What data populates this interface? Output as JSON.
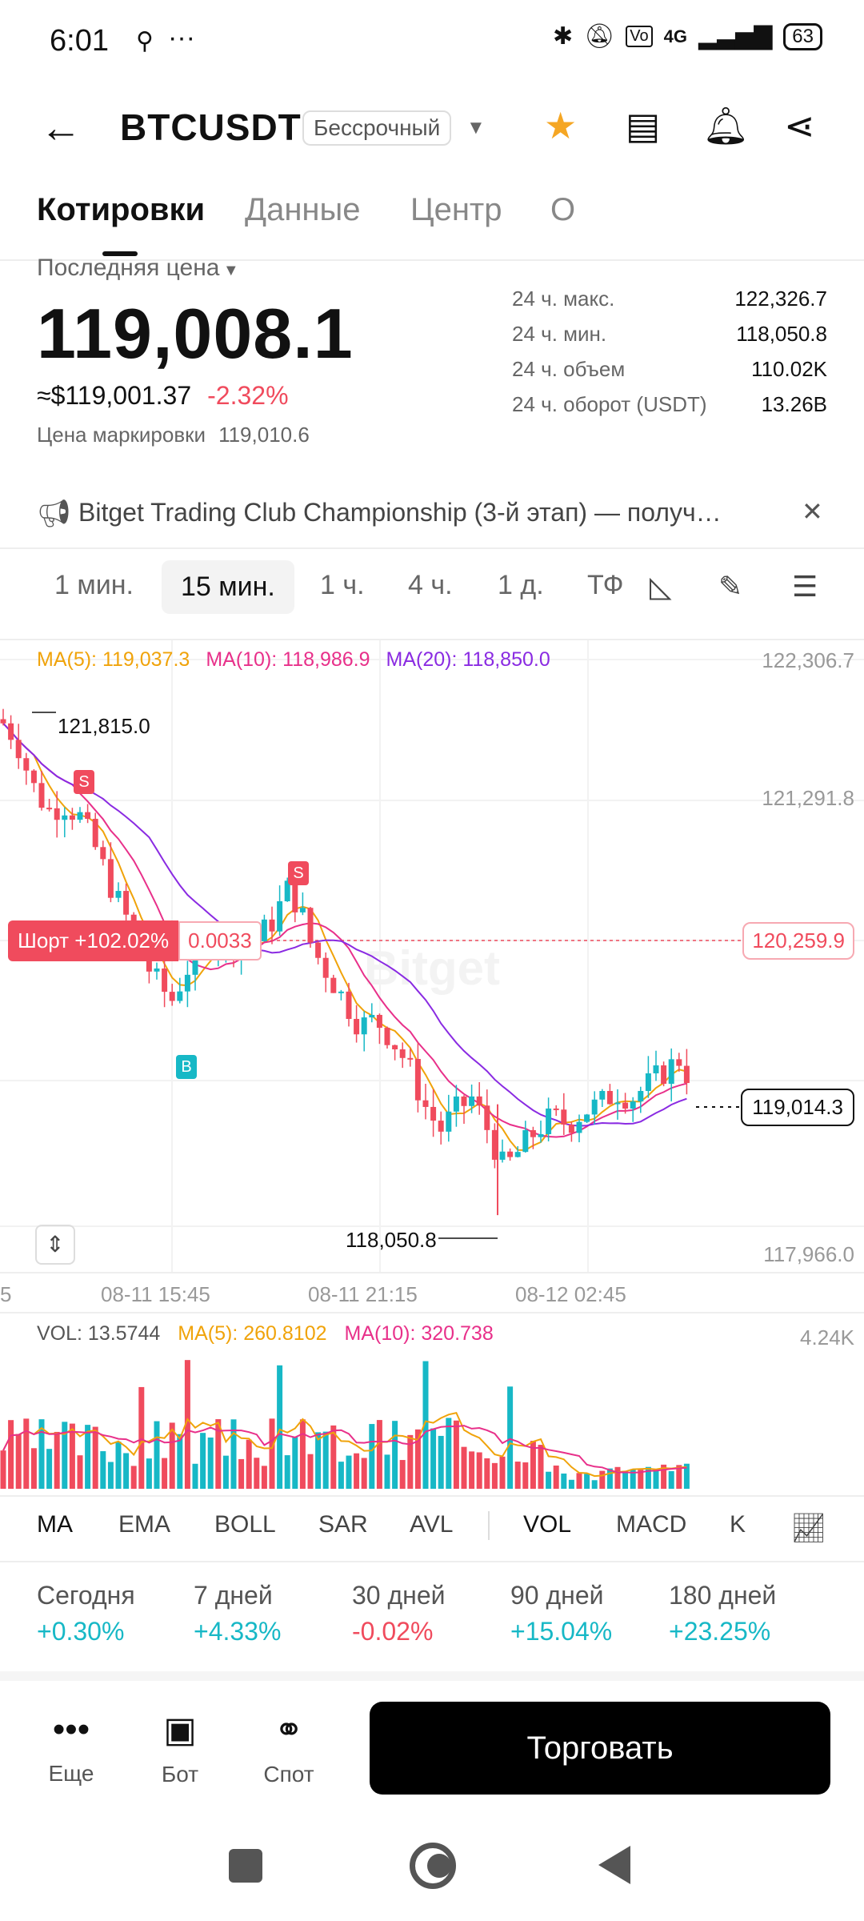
{
  "status": {
    "time": "6:01",
    "battery": "63",
    "network": "4G"
  },
  "header": {
    "symbol": "BTCUSDT",
    "contract_type": "Бессрочный"
  },
  "tabs": [
    {
      "label": "Котировки",
      "active": true
    },
    {
      "label": "Данные"
    },
    {
      "label": "Центр"
    },
    {
      "label": "О"
    }
  ],
  "price": {
    "last_label": "Последняя цена",
    "last_price": "119,008.1",
    "usd_approx": "≈$119,001.37",
    "change": "-2.32%",
    "mark_label": "Цена маркировки",
    "mark_value": "119,010.6"
  },
  "stats": [
    {
      "label": "24 ч. макс.",
      "value": "122,326.7"
    },
    {
      "label": "24 ч. мин.",
      "value": "118,050.8"
    },
    {
      "label": "24 ч. объем",
      "value": "110.02K"
    },
    {
      "label": "24 ч. оборот (USDT)",
      "value": "13.26B"
    }
  ],
  "announcement": {
    "text": "Bitget Trading Club Championship (3-й этап) — получ…"
  },
  "timeframes": [
    {
      "label": "1 мин."
    },
    {
      "label": "15 мин.",
      "active": true
    },
    {
      "label": "1 ч."
    },
    {
      "label": "4 ч."
    },
    {
      "label": "1 д."
    },
    {
      "label": "ТФ"
    }
  ],
  "chart": {
    "ma5_label": "MA(5): 119,037.3",
    "ma10_label": "MA(10): 118,986.9",
    "ma20_label": "MA(20): 118,850.0",
    "y_ticks": [
      "122,306.7",
      "121,291.8",
      "120,259.9",
      "117,966.0"
    ],
    "x_ticks": [
      "5",
      "08-11 15:45",
      "08-11 21:15",
      "08-12 02:45"
    ],
    "high_marker": "121,815.0",
    "low_marker": "118,050.8",
    "position_label": "Шорт +102.02%",
    "position_qty": "0.0033",
    "position_price": "120,259.9",
    "current_price": "119,014.3",
    "sell_marker": "S",
    "buy_marker": "B",
    "vol_label": "VOL: 13.5744",
    "vol_ma5_label": "MA(5): 260.8102",
    "vol_ma10_label": "MA(10): 320.738",
    "vol_max": "4.24K",
    "colors": {
      "up": "#17b8c6",
      "down": "#f04b5d",
      "ma5": "#f0a30a",
      "ma10": "#e8308a",
      "ma20": "#8a2be2"
    }
  },
  "indicators": [
    "MA",
    "EMA",
    "BOLL",
    "SAR",
    "AVL",
    "VOL",
    "MACD",
    "K"
  ],
  "performance": [
    {
      "label": "Сегодня",
      "value": "+0.30%"
    },
    {
      "label": "7 дней",
      "value": "+4.33%"
    },
    {
      "label": "30 дней",
      "value": "-0.02%"
    },
    {
      "label": "90 дней",
      "value": "+15.04%"
    },
    {
      "label": "180 дней",
      "value": "+23.25%"
    }
  ],
  "bottom": {
    "more": "Еще",
    "bot": "Бот",
    "spot": "Спот",
    "trade": "Торговать"
  }
}
